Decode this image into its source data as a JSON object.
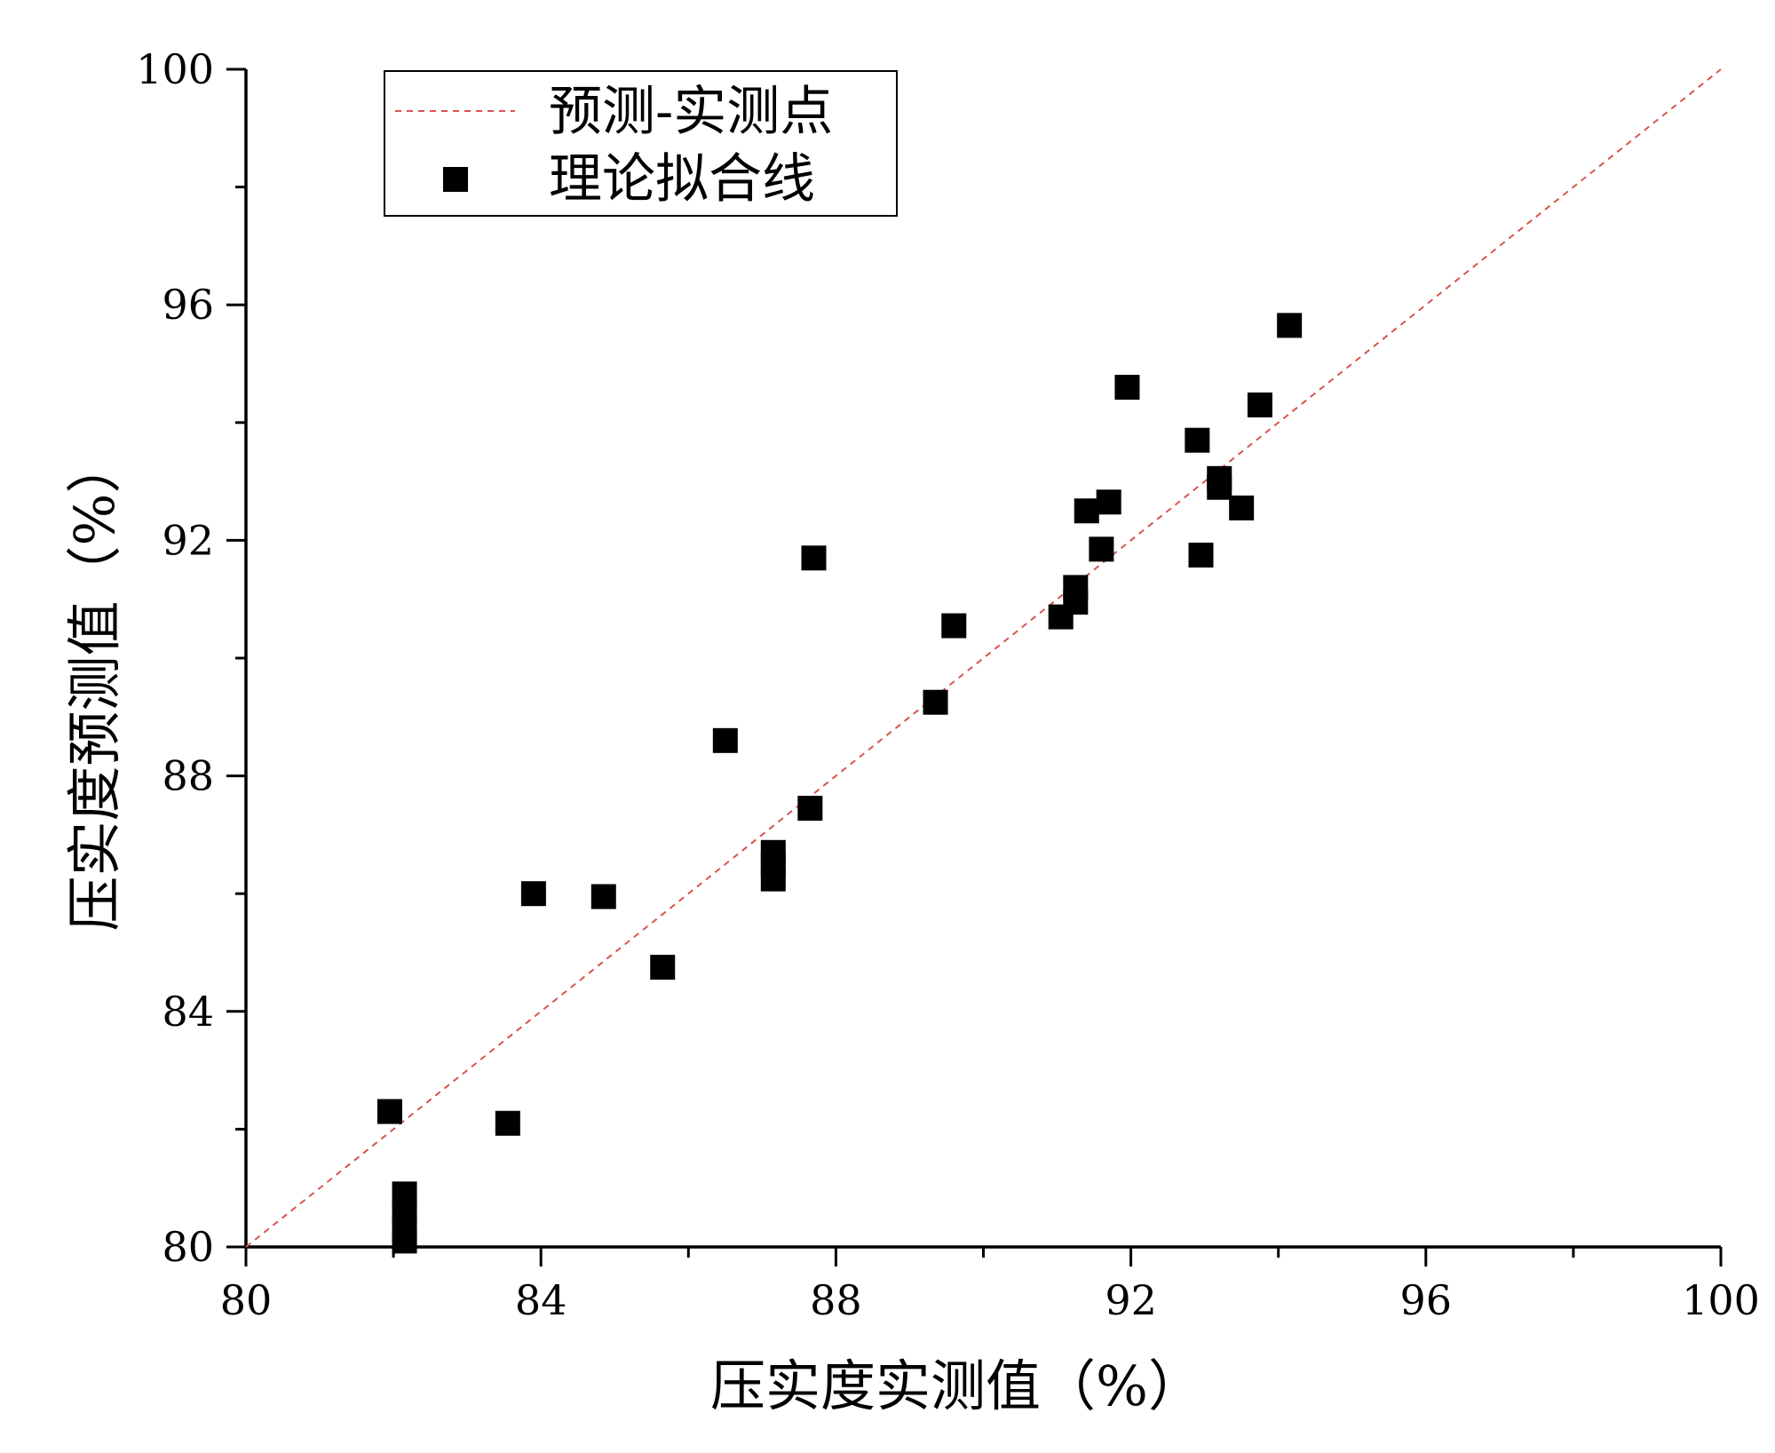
{
  "chart_data": {
    "type": "scatter",
    "title": "",
    "xlabel": "压实度实测值（%）",
    "ylabel": "压实度预测值（%）",
    "xlim": [
      80,
      100
    ],
    "ylim": [
      80,
      100
    ],
    "x_ticks": [
      80,
      84,
      88,
      92,
      96,
      100
    ],
    "y_ticks": [
      80,
      84,
      88,
      92,
      96,
      100
    ],
    "x_tick_labels": [
      "80",
      "84",
      "88",
      "92",
      "96",
      "100"
    ],
    "y_tick_labels": [
      "80",
      "84",
      "88",
      "92",
      "96",
      "100"
    ],
    "x_minor_step": 2,
    "y_minor_step": 2,
    "grid": false,
    "legend": {
      "placement": "top-left",
      "entries": [
        {
          "label": "预测-实测点",
          "kind": "dashed-line",
          "color": "#d9534f"
        },
        {
          "label": "理论拟合线",
          "kind": "square-marker",
          "color": "#000000"
        }
      ]
    },
    "series": [
      {
        "kind": "line",
        "style": "dashed",
        "color": "#d9534f",
        "x": [
          80,
          100
        ],
        "y": [
          80,
          100
        ]
      },
      {
        "kind": "scatter",
        "marker": "square",
        "color": "#000000",
        "x": [
          81.95,
          82.15,
          82.15,
          82.15,
          82.15,
          83.55,
          83.9,
          84.85,
          85.65,
          86.5,
          87.15,
          87.15,
          87.15,
          87.65,
          87.7,
          89.35,
          89.6,
          91.05,
          91.25,
          91.25,
          91.4,
          91.6,
          91.7,
          91.95,
          92.9,
          92.95,
          93.2,
          93.2,
          93.5,
          93.75,
          94.15
        ],
        "y": [
          82.3,
          80.9,
          80.6,
          80.3,
          80.1,
          82.1,
          86.0,
          85.95,
          84.75,
          88.6,
          86.7,
          86.5,
          86.25,
          87.45,
          91.7,
          89.25,
          90.55,
          90.7,
          90.95,
          91.2,
          92.5,
          91.85,
          92.65,
          94.6,
          93.7,
          91.75,
          93.05,
          92.9,
          92.55,
          94.3,
          95.65
        ]
      }
    ]
  }
}
